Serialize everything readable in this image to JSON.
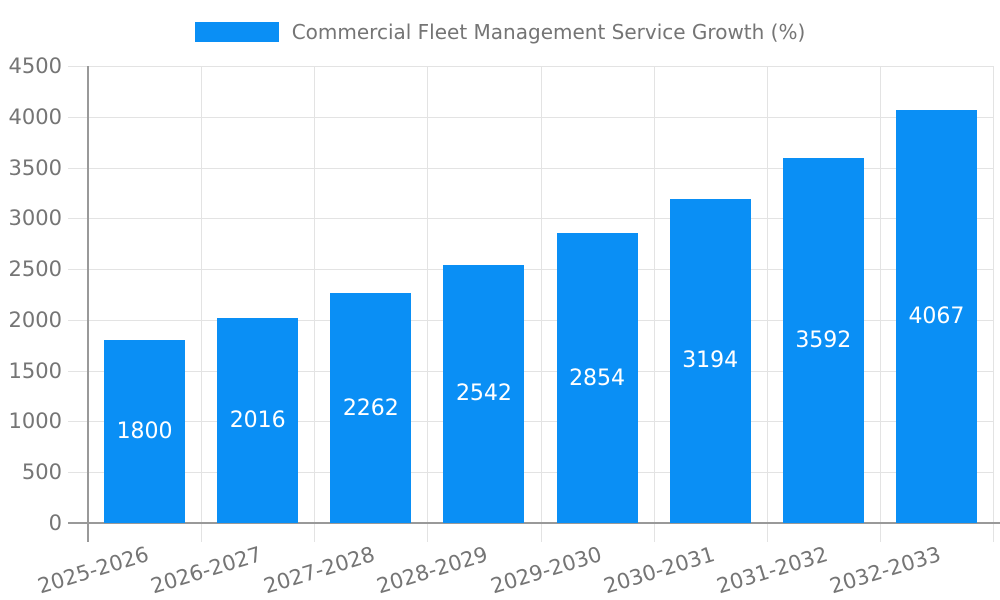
{
  "chart_data": {
    "type": "bar",
    "title": "Commercial Fleet Management Service Growth (%)",
    "legend_position": "top",
    "categories": [
      "2025-2026",
      "2026-2027",
      "2027-2028",
      "2028-2029",
      "2029-2030",
      "2030-2031",
      "2031-2032",
      "2032-2033"
    ],
    "values": [
      1800,
      2016,
      2262,
      2542,
      2854,
      3194,
      3592,
      4067
    ],
    "xlabel": "",
    "ylabel": "",
    "ylim": [
      0,
      4500
    ],
    "ytick_step": 500,
    "grid": true,
    "value_labels_inside_bars": true,
    "colors": {
      "bar": "#0A8FF5",
      "value_label": "#FFFFFF",
      "axis_text": "#757575",
      "gridline": "#E3E3E3",
      "axis_line": "#999999",
      "background": "#FFFFFF"
    }
  }
}
